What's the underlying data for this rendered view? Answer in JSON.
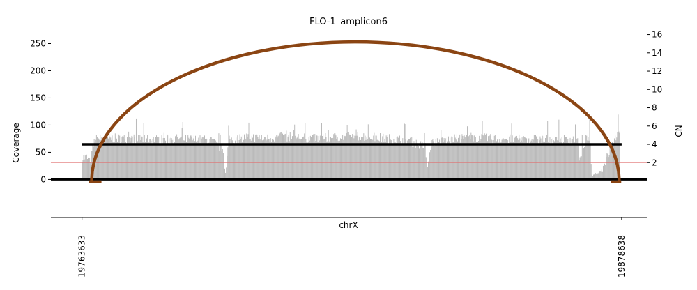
{
  "chart_data": {
    "type": "bar",
    "title": "FLO-1_amplicon6",
    "xlabel": "chrX",
    "ylabel_left": "Coverage",
    "ylabel_right": "CN",
    "x_ticks": [
      "19763633",
      "19878638"
    ],
    "xlim": [
      19757000,
      19884000
    ],
    "ylim_left": [
      -70,
      275
    ],
    "yticks_left": [
      0,
      50,
      100,
      150,
      200,
      250
    ],
    "ylim_right": [
      -4,
      16.5
    ],
    "yticks_right": [
      2,
      4,
      6,
      8,
      10,
      12,
      14,
      16
    ],
    "grid": false,
    "coverage_anchors": {
      "x": [
        19763600,
        19764800,
        19765100,
        19766300,
        19771000,
        19776000,
        19781000,
        19784000,
        19787000,
        19791000,
        19793700,
        19794200,
        19794800,
        19798500,
        19803000,
        19808000,
        19813000,
        19818000,
        19823000,
        19828000,
        19833000,
        19836700,
        19837200,
        19838000,
        19841000,
        19846000,
        19851000,
        19856000,
        19860000,
        19866000,
        19869200,
        19869600,
        19870800,
        19871800,
        19872200,
        19874200,
        19877500,
        19878300
      ],
      "y": [
        40,
        40,
        28,
        74,
        76,
        75,
        73,
        75,
        74,
        72,
        55,
        10,
        72,
        78,
        76,
        79,
        75,
        78,
        80,
        76,
        72,
        60,
        30,
        68,
        72,
        78,
        75,
        74,
        74,
        74,
        74,
        30,
        72,
        78,
        8,
        15,
        82,
        82
      ]
    },
    "cn_segments": [
      {
        "x_start": 19763633,
        "x_end": 19878638,
        "cn": 4.0,
        "color": "#000000"
      }
    ],
    "baseline_cn": {
      "cn": 2.0,
      "color": "#e07070"
    },
    "breakpoints": [
      {
        "x_start": 19765700,
        "x_end": 19878100,
        "color": "#8b4513",
        "peak_cn": 15.2
      }
    ],
    "colors": {
      "coverage": "#b3b3b3",
      "cn_line": "#000000",
      "arc": "#8b4513",
      "baseline": "#e07070"
    }
  }
}
